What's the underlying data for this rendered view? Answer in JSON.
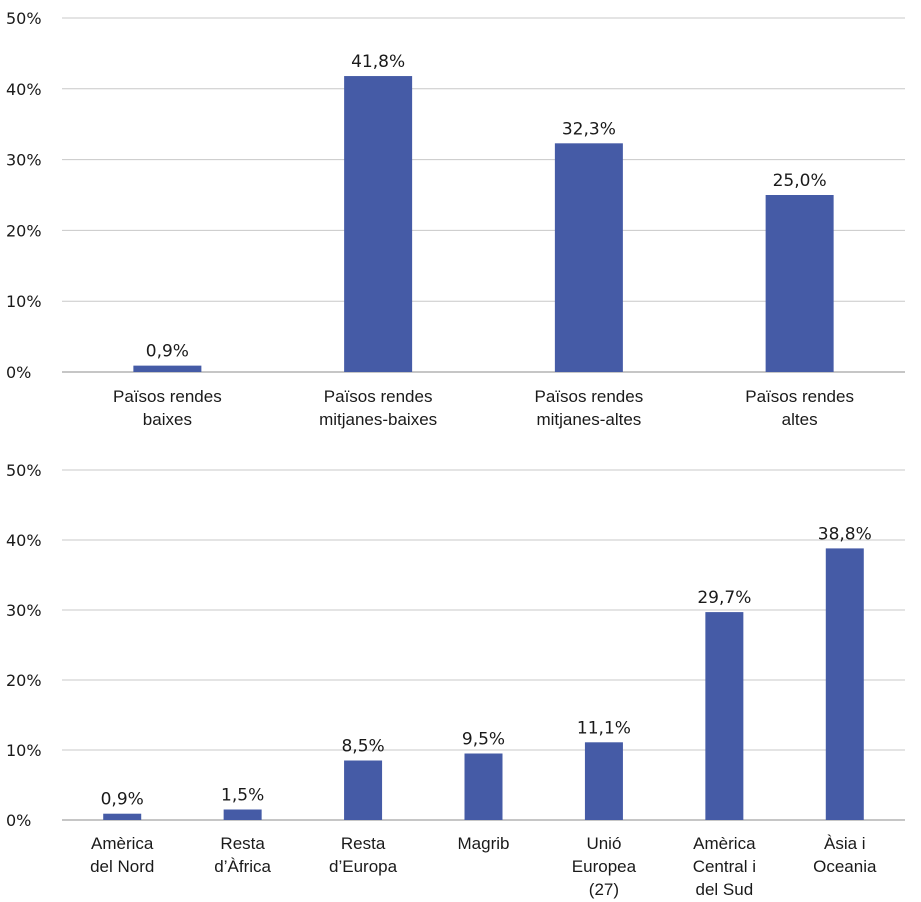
{
  "chart_data": [
    {
      "type": "bar",
      "title": "",
      "xlabel": "",
      "ylabel": "",
      "ylim": [
        0,
        50
      ],
      "yticks": [
        "0%",
        "10%",
        "20%",
        "30%",
        "40%",
        "50%"
      ],
      "grid": true,
      "bar_color": "#455ba6",
      "categories": [
        [
          "Països rendes",
          "baixes"
        ],
        [
          "Països rendes",
          "mitjanes-baixes"
        ],
        [
          "Països rendes",
          "mitjanes-altes"
        ],
        [
          "Països rendes",
          "altes"
        ]
      ],
      "values": [
        0.9,
        41.8,
        32.3,
        25.0
      ],
      "data_labels": [
        "0,9%",
        "41,8%",
        "32,3%",
        "25,0%"
      ]
    },
    {
      "type": "bar",
      "title": "",
      "xlabel": "",
      "ylabel": "",
      "ylim": [
        0,
        50
      ],
      "yticks": [
        "0%",
        "10%",
        "20%",
        "30%",
        "40%",
        "50%"
      ],
      "grid": true,
      "bar_color": "#455ba6",
      "categories": [
        [
          "Amèrica",
          "del Nord"
        ],
        [
          "Resta",
          "d’Àfrica"
        ],
        [
          "Resta",
          "d’Europa"
        ],
        [
          "Magrib"
        ],
        [
          "Unió",
          "Europea",
          "(27)"
        ],
        [
          "Amèrica",
          "Central i",
          "del Sud"
        ],
        [
          "Àsia i",
          "Oceania"
        ]
      ],
      "values": [
        0.9,
        1.5,
        8.5,
        9.5,
        11.1,
        29.7,
        38.8
      ],
      "data_labels": [
        "0,9%",
        "1,5%",
        "8,5%",
        "9,5%",
        "11,1%",
        "29,7%",
        "38,8%"
      ]
    }
  ]
}
